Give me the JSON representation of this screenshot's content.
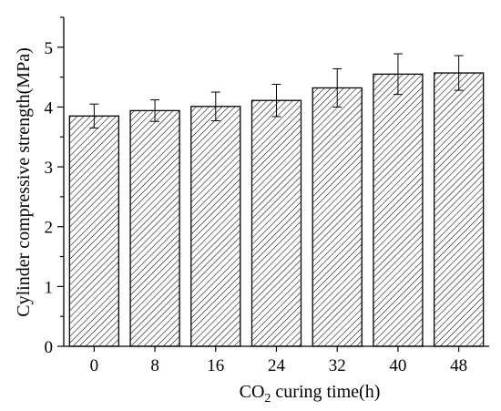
{
  "chart_data": {
    "type": "bar",
    "categories": [
      "0",
      "8",
      "16",
      "24",
      "32",
      "40",
      "48"
    ],
    "values": [
      3.85,
      3.94,
      4.01,
      4.11,
      4.32,
      4.55,
      4.57
    ],
    "errors": [
      0.2,
      0.18,
      0.24,
      0.27,
      0.32,
      0.34,
      0.29
    ],
    "title": "",
    "xlabel": {
      "prefix": "CO",
      "subscript": "2",
      "suffix": " curing time(h)"
    },
    "ylabel": "Cylinder compressive strength(MPa)",
    "ylim": [
      0,
      5.5
    ],
    "yticks": [
      "0",
      "1",
      "2",
      "3",
      "4",
      "5"
    ],
    "grid": false,
    "bar_fill": "hatched",
    "colors": {
      "bar_stroke": "#000000",
      "hatch": "#000000",
      "axis": "#000000"
    }
  }
}
